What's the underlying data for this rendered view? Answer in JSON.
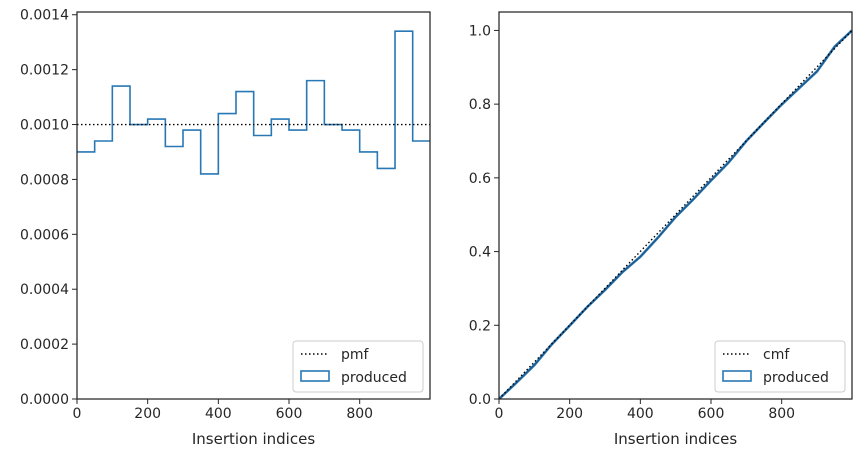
{
  "chart_data": [
    {
      "type": "histogram",
      "xlabel": "Insertion indices",
      "ylabel": "",
      "xlim": [
        0,
        999
      ],
      "ylim": [
        0,
        0.00141
      ],
      "xticks": [
        "0",
        "200",
        "400",
        "600",
        "800"
      ],
      "yticks": [
        "0.0000",
        "0.0002",
        "0.0004",
        "0.0006",
        "0.0008",
        "0.0010",
        "0.0012",
        "0.0014"
      ],
      "bin_edges": [
        0,
        50,
        100,
        150,
        200,
        250,
        300,
        350,
        400,
        450,
        500,
        550,
        600,
        650,
        700,
        750,
        800,
        850,
        900,
        950,
        999
      ],
      "series": [
        {
          "name": "produced",
          "style": "step",
          "color": "#2878b5",
          "values": [
            0.0009,
            0.00094,
            0.00114,
            0.001,
            0.00102,
            0.00092,
            0.00098,
            0.00082,
            0.00104,
            0.00112,
            0.00096,
            0.00102,
            0.00098,
            0.00116,
            0.001,
            0.00098,
            0.0009,
            0.00084,
            0.00134,
            0.00094
          ]
        },
        {
          "name": "pmf",
          "style": "dotted",
          "color": "#000000",
          "value": 0.001
        }
      ],
      "legend": {
        "position": "lower-right",
        "entries": [
          "pmf",
          "produced"
        ]
      }
    },
    {
      "type": "line",
      "xlabel": "Insertion indices",
      "ylabel": "",
      "xlim": [
        0,
        999
      ],
      "ylim": [
        0,
        1.05
      ],
      "xticks": [
        "0",
        "200",
        "400",
        "600",
        "800"
      ],
      "yticks": [
        "0.0",
        "0.2",
        "0.4",
        "0.6",
        "0.8",
        "1.0"
      ],
      "series": [
        {
          "name": "produced",
          "style": "step",
          "color": "#2878b5",
          "x": [
            0,
            50,
            100,
            150,
            200,
            250,
            300,
            350,
            400,
            450,
            500,
            550,
            600,
            650,
            700,
            750,
            800,
            850,
            900,
            950,
            999
          ],
          "y": [
            0,
            0.045,
            0.092,
            0.149,
            0.199,
            0.25,
            0.296,
            0.345,
            0.386,
            0.438,
            0.494,
            0.542,
            0.593,
            0.642,
            0.7,
            0.75,
            0.799,
            0.844,
            0.889,
            0.956,
            1.0
          ]
        },
        {
          "name": "cmf",
          "style": "dotted",
          "color": "#000000",
          "x": [
            0,
            999
          ],
          "y": [
            0,
            1.0
          ]
        }
      ],
      "legend": {
        "position": "lower-right",
        "entries": [
          "cmf",
          "produced"
        ]
      }
    }
  ]
}
